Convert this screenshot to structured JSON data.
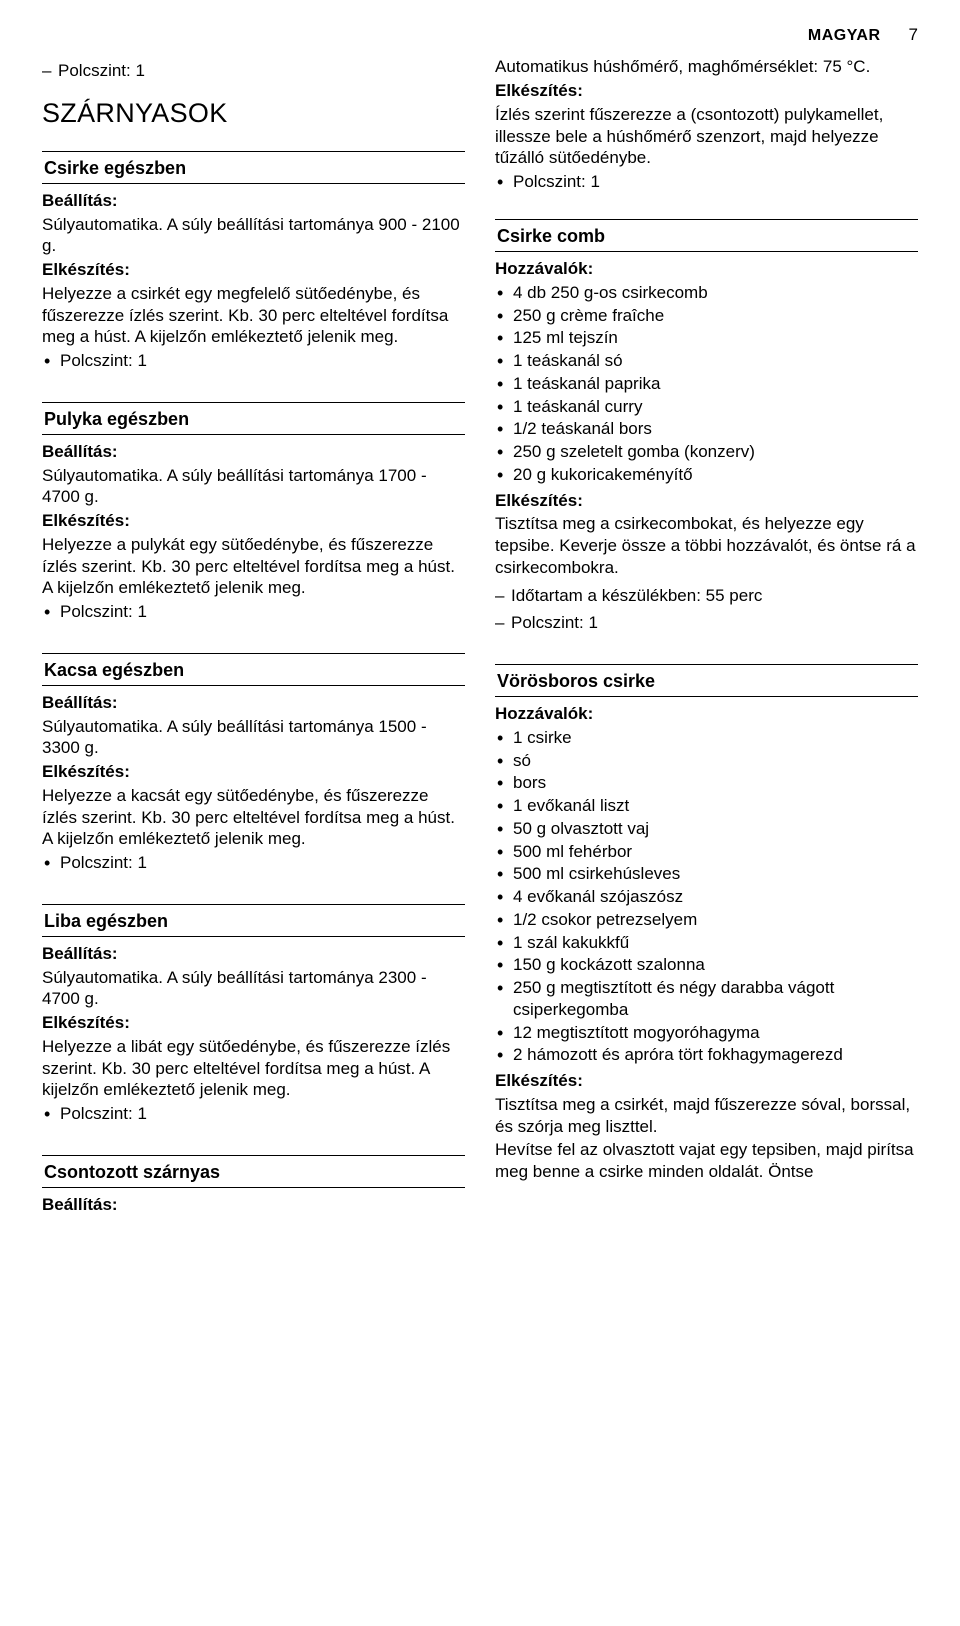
{
  "header": {
    "language": "MAGYAR",
    "page_number": "7"
  },
  "left": {
    "top_dash": "Polcszint: 1",
    "section_title": "SZÁRNYASOK",
    "recipes": [
      {
        "title": "Csirke egészben",
        "setting_label": "Beállítás:",
        "setting_text": "Súlyautomatika. A súly beállítási tartománya 900 - 2100 g.",
        "prep_label": "Elkészítés:",
        "prep_text": "Helyezze a csirkét egy megfelelő sütőedénybe, és fűszerezze ízlés szerint. Kb. 30 perc elteltével fordítsa meg a húst. A kijelzőn emlékeztető jelenik meg.",
        "bullets": [
          "Polcszint: 1"
        ]
      },
      {
        "title": "Pulyka egészben",
        "setting_label": "Beállítás:",
        "setting_text": "Súlyautomatika. A súly beállítási tartománya 1700 - 4700 g.",
        "prep_label": "Elkészítés:",
        "prep_text": "Helyezze a pulykát egy sütőedénybe, és fűszerezze ízlés szerint. Kb. 30 perc elteltével fordítsa meg a húst. A kijelzőn emlékeztető jelenik meg.",
        "bullets": [
          "Polcszint: 1"
        ]
      },
      {
        "title": "Kacsa egészben",
        "setting_label": "Beállítás:",
        "setting_text": "Súlyautomatika. A súly beállítási tartománya 1500 - 3300 g.",
        "prep_label": "Elkészítés:",
        "prep_text": "Helyezze a kacsát egy sütőedénybe, és fűszerezze ízlés szerint. Kb. 30 perc elteltével fordítsa meg a húst. A kijelzőn emlékeztető jelenik meg.",
        "bullets": [
          "Polcszint: 1"
        ]
      },
      {
        "title": "Liba egészben",
        "setting_label": "Beállítás:",
        "setting_text": "Súlyautomatika. A súly beállítási tartománya 2300 - 4700 g.",
        "prep_label": "Elkészítés:",
        "prep_text": "Helyezze a libát egy sütőedénybe, és fűszerezze ízlés szerint. Kb. 30 perc elteltével fordítsa meg a húst. A kijelzőn emlékeztető jelenik meg.",
        "bullets": [
          "Polcszint: 1"
        ]
      },
      {
        "title": "Csontozott szárnyas",
        "setting_label": "Beállítás:"
      }
    ]
  },
  "right": {
    "intro_text": "Automatikus húshőmérő, maghőmérséklet: 75 °C.",
    "prep_label": "Elkészítés:",
    "prep_text": "Ízlés szerint fűszerezze a (csontozott) pulykamellet, illessze bele a húshőmérő szenzort, majd helyezze tűzálló sütőedénybe.",
    "bullets_top": [
      "Polcszint: 1"
    ],
    "recipes": [
      {
        "title": "Csirke comb",
        "ing_label": "Hozzávalók:",
        "ingredients": [
          "4 db 250 g-os csirkecomb",
          "250 g crème fraîche",
          "125 ml tejszín",
          "1 teáskanál só",
          "1 teáskanál paprika",
          "1 teáskanál curry",
          "1/2 teáskanál bors",
          "250 g szeletelt gomba (konzerv)",
          "20 g kukoricakeményítő"
        ],
        "prep_label": "Elkészítés:",
        "prep_text": "Tisztítsa meg a csirkecombokat, és helyezze egy tepsibe. Keverje össze a többi hozzávalót, és öntse rá a csirkecombokra.",
        "dashes": [
          "Időtartam a készülékben: 55 perc",
          "Polcszint: 1"
        ]
      },
      {
        "title": "Vörösboros csirke",
        "ing_label": "Hozzávalók:",
        "ingredients": [
          "1 csirke",
          "só",
          "bors",
          "1 evőkanál liszt",
          "50 g olvasztott vaj",
          "500 ml fehérbor",
          "500 ml csirkehúsleves",
          "4 evőkanál szójaszósz",
          "1/2 csokor petrezselyem",
          "1 szál kakukkfű",
          "150 g kockázott szalonna",
          "250 g megtisztított és négy darabba vágott csiperkegomba",
          "12 megtisztított mogyoróhagyma",
          "2 hámozott és apróra tört fokhagymagerezd"
        ],
        "prep_label": "Elkészítés:",
        "prep_text": "Tisztítsa meg a csirkét, majd fűszerezze sóval, borssal, és szórja meg liszttel.",
        "prep_text2": "Hevítse fel az olvasztott vajat egy tepsiben, majd pirítsa meg benne a csirke minden oldalát. Öntse"
      }
    ]
  }
}
